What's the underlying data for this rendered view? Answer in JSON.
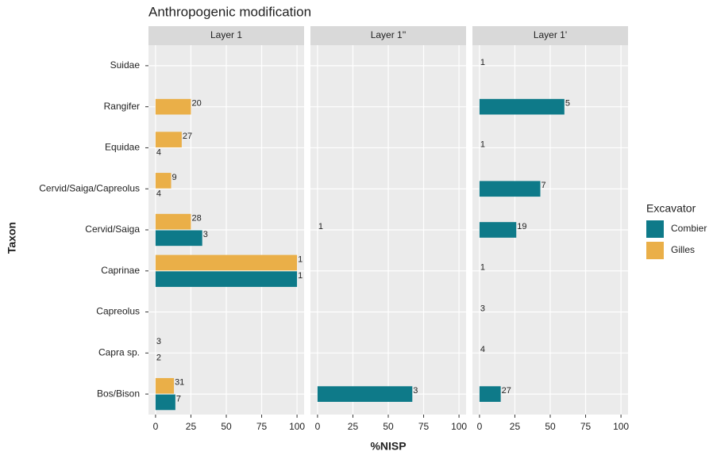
{
  "chart_data": {
    "type": "bar",
    "title": "Anthropogenic modification",
    "x_label": "%NISP",
    "y_label": "Taxon",
    "legend_title": "Excavator",
    "categories": [
      "Suidae",
      "Rangifer",
      "Equidae",
      "Cervid/Saiga/Capreolus",
      "Cervid/Saiga",
      "Caprinae",
      "Capreolus",
      "Capra sp.",
      "Bos/Bison"
    ],
    "series": [
      {
        "name": "Combier",
        "color": "#0e7a89"
      },
      {
        "name": "Gilles",
        "color": "#eaaf48"
      }
    ],
    "xlim": [
      -5,
      105
    ],
    "xticks": [
      0,
      25,
      50,
      75,
      100
    ],
    "grid": true,
    "panels": [
      {
        "title": "Layer 1",
        "series": [
          {
            "values": [
              null,
              null,
              0,
              0,
              33,
              100,
              null,
              0,
              14
            ],
            "counts": [
              null,
              null,
              4,
              4,
              3,
              1,
              null,
              2,
              7
            ]
          },
          {
            "values": [
              null,
              25,
              18.5,
              11,
              25,
              100,
              null,
              0,
              13
            ],
            "counts": [
              null,
              20,
              27,
              9,
              28,
              1,
              null,
              3,
              31
            ]
          }
        ]
      },
      {
        "title": "Layer 1''",
        "series": [
          {
            "values": [
              null,
              null,
              null,
              null,
              0,
              null,
              null,
              null,
              67
            ],
            "counts": [
              null,
              null,
              null,
              null,
              1,
              null,
              null,
              null,
              3
            ]
          },
          {
            "values": [
              null,
              null,
              null,
              null,
              null,
              null,
              null,
              null,
              null
            ],
            "counts": [
              null,
              null,
              null,
              null,
              null,
              null,
              null,
              null,
              null
            ]
          }
        ]
      },
      {
        "title": "Layer 1'",
        "series": [
          {
            "values": [
              0,
              60,
              0,
              43,
              26,
              0,
              0,
              0,
              15
            ],
            "counts": [
              1,
              5,
              1,
              7,
              19,
              1,
              3,
              4,
              27
            ]
          },
          {
            "values": [
              null,
              null,
              null,
              null,
              null,
              null,
              null,
              null,
              null
            ],
            "counts": [
              null,
              null,
              null,
              null,
              null,
              null,
              null,
              null,
              null
            ]
          }
        ]
      }
    ]
  }
}
